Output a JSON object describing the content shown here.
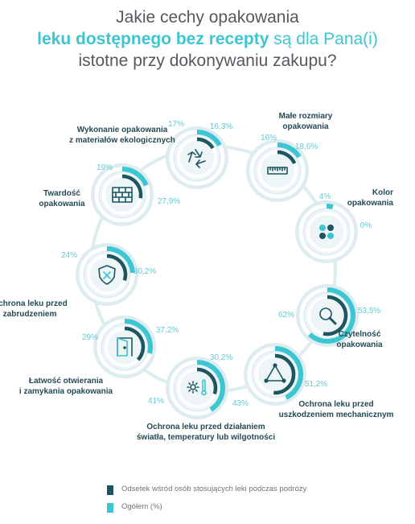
{
  "title": {
    "line1": "Jakie cechy opakowania",
    "line2_bold": "leku dostępnego bez recepty",
    "line2_rest": " są dla Pana(i)",
    "line3": "istotne przy dokonywaniu zakupu?"
  },
  "colors": {
    "travel": "#1d5660",
    "total": "#3cc5d2",
    "ring_track": "#dcecef",
    "circle_fill": "#edf5f7",
    "label_text": "#234a55",
    "pct_text": "#63c9d4"
  },
  "legend": {
    "travel_label": "Odsetek wśród osób stosujących leki podczas podróży",
    "total_label": "Ogółem (%)"
  },
  "chart_data": {
    "type": "donut",
    "unit": "%",
    "series": [
      {
        "name": "Odsetek wśród osób stosujących leki podczas podróży",
        "key": "travel"
      },
      {
        "name": "Ogółem (%)",
        "key": "total"
      }
    ],
    "items": [
      {
        "label": "Wykonanie opakowania\nz materiałów ekologicznych",
        "icon": "recycle-icon",
        "total": 17,
        "travel": 16.3,
        "total_text": "17%",
        "travel_text": "16,3%"
      },
      {
        "label": "Małe rozmiary\nopakowania",
        "icon": "ruler-icon",
        "total": 16,
        "travel": 18.6,
        "total_text": "16%",
        "travel_text": "18,6%"
      },
      {
        "label": "Kolor\nopakowania",
        "icon": "color-dots-icon",
        "total": 4,
        "travel": 0,
        "total_text": "4%",
        "travel_text": "0%"
      },
      {
        "label": "Czytelność\nopakowania",
        "icon": "magnifier-icon",
        "total": 62,
        "travel": 53.5,
        "total_text": "62%",
        "travel_text": "53,5%"
      },
      {
        "label": "Ochrona leku przed\nuszkodzeniem mechanicznym",
        "icon": "triangle-icon",
        "total": 43,
        "travel": 51.2,
        "total_text": "43%",
        "travel_text": "51,2%"
      },
      {
        "label": "Ochrona leku przed działaniem\nświatła, temperatury lub wilgotności",
        "icon": "sun-thermometer-icon",
        "total": 41,
        "travel": 30.2,
        "total_text": "41%",
        "travel_text": "30,2%"
      },
      {
        "label": "Łatwość otwierania\ni zamykania opakowania",
        "icon": "door-icon",
        "total": 29,
        "travel": 37.2,
        "total_text": "29%",
        "travel_text": "37,2%"
      },
      {
        "label": "Ochrona leku przed\nzabrudzeniem",
        "icon": "shield-icon",
        "total": 24,
        "travel": 30.2,
        "total_text": "24%",
        "travel_text": "30,2%"
      },
      {
        "label": "Twardość\nopakowania",
        "icon": "brick-wall-icon",
        "total": 19,
        "travel": 27.9,
        "total_text": "19%",
        "travel_text": "27,9%"
      }
    ]
  }
}
